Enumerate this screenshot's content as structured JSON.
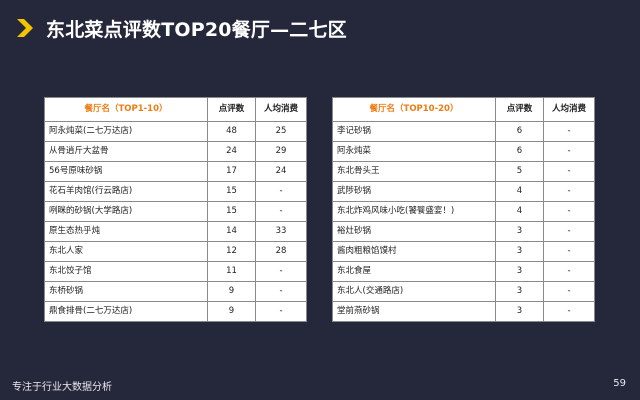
{
  "title": "东北菜点评数TOP20餐厅—二七区",
  "colors": {
    "background": "#25273a",
    "accent_icon": "#f5c400",
    "header_name": "#ee7c12"
  },
  "icons": {
    "title_marker": "chevron-right-icon"
  },
  "left_table": {
    "headers": {
      "name": "餐厅名（TOP1-10）",
      "reviews": "点评数",
      "avg": "人均消费"
    },
    "rows": [
      {
        "name": "阿永炖菜(二七万达店)",
        "reviews": "48",
        "avg": "25"
      },
      {
        "name": "从骨逍斤大盆骨",
        "reviews": "24",
        "avg": "29"
      },
      {
        "name": "56号原味砂锅",
        "reviews": "17",
        "avg": "24"
      },
      {
        "name": "花石羊肉馆(行云路店)",
        "reviews": "15",
        "avg": "-"
      },
      {
        "name": "咧眯的砂锅(大学路店)",
        "reviews": "15",
        "avg": "-"
      },
      {
        "name": "原生态热乎炖",
        "reviews": "14",
        "avg": "33"
      },
      {
        "name": "东北人家",
        "reviews": "12",
        "avg": "28"
      },
      {
        "name": "东北饺子馆",
        "reviews": "11",
        "avg": "-"
      },
      {
        "name": "东桥砂锅",
        "reviews": "9",
        "avg": "-"
      },
      {
        "name": "鼎食排骨(二七万达店)",
        "reviews": "9",
        "avg": "-"
      }
    ]
  },
  "right_table": {
    "headers": {
      "name": "餐厅名（TOP10-20）",
      "reviews": "点评数",
      "avg": "人均消费"
    },
    "rows": [
      {
        "name": "李记砂锅",
        "reviews": "6",
        "avg": "-"
      },
      {
        "name": "阿永炖菜",
        "reviews": "6",
        "avg": "-"
      },
      {
        "name": "东北骨头王",
        "reviews": "5",
        "avg": "-"
      },
      {
        "name": "武陟砂锅",
        "reviews": "4",
        "avg": "-"
      },
      {
        "name": "东北炸鸡风味小吃(饕餮盛宴！)",
        "reviews": "4",
        "avg": "-"
      },
      {
        "name": "裕灶砂锅",
        "reviews": "3",
        "avg": "-"
      },
      {
        "name": "酱肉粗粮馅馍村",
        "reviews": "3",
        "avg": "-"
      },
      {
        "name": "东北食屋",
        "reviews": "3",
        "avg": "-"
      },
      {
        "name": "东北人(交通路店)",
        "reviews": "3",
        "avg": "-"
      },
      {
        "name": "堂前燕砂锅",
        "reviews": "3",
        "avg": "-"
      }
    ]
  },
  "footer": {
    "left": "专注于行业大数据分析",
    "page": "59"
  }
}
